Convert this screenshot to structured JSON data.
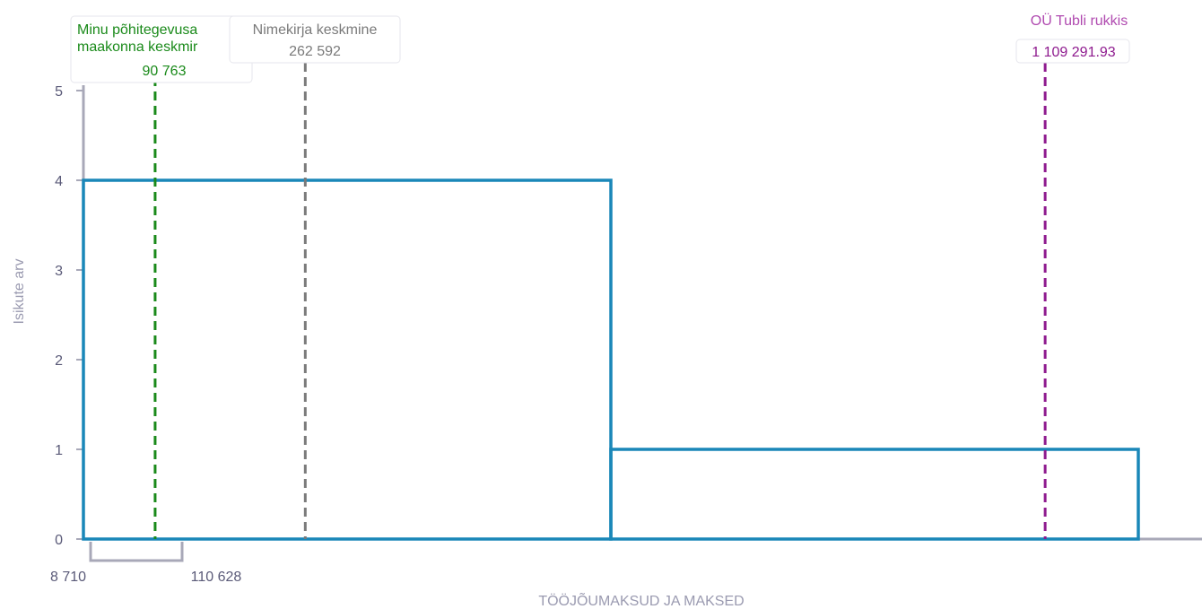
{
  "chart_data": {
    "type": "histogram",
    "xlabel": "TÖÖJÕUMAKSUD JA MAKSED",
    "ylabel": "Isikute arv",
    "ylim": [
      0,
      5
    ],
    "yticks": [
      0,
      1,
      2,
      3,
      4,
      5
    ],
    "bins": [
      {
        "from": 8710,
        "to": 612310,
        "count": 4
      },
      {
        "from": 612310,
        "to": 1215910,
        "count": 1
      }
    ],
    "bracket": {
      "from": 8710,
      "to": 110628,
      "from_label": "8 710",
      "to_label": "110 628"
    },
    "markers": [
      {
        "label_lines": [
          "Minu põhitegevusa",
          "maakonna keskmir"
        ],
        "value_label": "90 763",
        "value": 90763,
        "color": "#1a8a1a"
      },
      {
        "label_lines": [
          "Nimekirja keskmine"
        ],
        "value_label": "262 592",
        "value": 262592,
        "color": "#7a7a7a"
      },
      {
        "label_lines": [
          "OÜ Tubli rukkis"
        ],
        "value_label": "1 109 291.93",
        "value": 1109291.93,
        "color": "#8e1a8e"
      }
    ],
    "colors": {
      "bar": "#1a87b8",
      "axis": "#a8a8b8",
      "label": "#5a5a78",
      "axis_title": "#9a9ab0"
    }
  }
}
